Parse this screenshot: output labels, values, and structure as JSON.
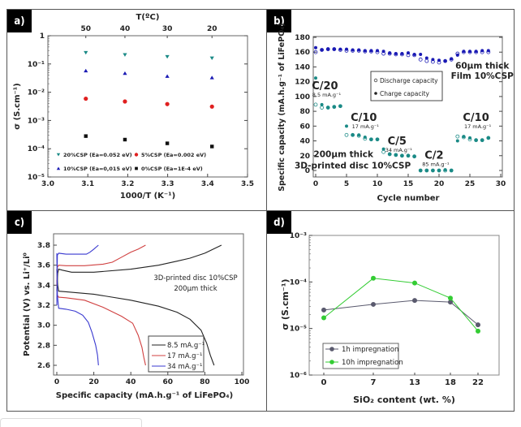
{
  "panels": {
    "a": {
      "label": "a)"
    },
    "b": {
      "label": "b)"
    },
    "c": {
      "label": "c)"
    },
    "d": {
      "label": "d)"
    }
  },
  "chart_data": [
    {
      "id": "a",
      "type": "scatter",
      "title": "",
      "xlabel": "1000/T (K⁻¹)",
      "ylabel": "σ (S.cm⁻¹)",
      "x2label": "T(ºC)",
      "yscale": "log",
      "xlim": [
        3.0,
        3.5
      ],
      "ylim_exp": [
        -5,
        0
      ],
      "xticks": [
        "3.0",
        "3.1",
        "3.2",
        "3.3",
        "3.4",
        "3.5"
      ],
      "xtick_values": [
        3.0,
        3.1,
        3.2,
        3.3,
        3.4,
        3.5
      ],
      "yticks": [
        "1",
        "10⁻¹",
        "10⁻²",
        "10⁻³",
        "10⁻⁴",
        "10⁻⁵"
      ],
      "ytick_exps": [
        0,
        -1,
        -2,
        -3,
        -4,
        -5
      ],
      "x2ticks": [
        "50",
        "40",
        "30",
        "20"
      ],
      "x2tick_values": [
        3.095,
        3.193,
        3.299,
        3.411
      ],
      "grid": false,
      "legend": "bottom-left",
      "series": [
        {
          "name": "20%CSP (Ea=0.052 eV)",
          "marker": "triangle-down",
          "color": "#1a8a86",
          "x": [
            3.095,
            3.193,
            3.299,
            3.411
          ],
          "y": [
            0.25,
            0.21,
            0.18,
            0.16
          ]
        },
        {
          "name": "10%CSP (Ea=0,015 eV)",
          "marker": "triangle-up",
          "color": "#1a1ab4",
          "x": [
            3.095,
            3.193,
            3.299,
            3.411
          ],
          "y": [
            0.058,
            0.047,
            0.037,
            0.033
          ]
        },
        {
          "name": "5%CSP (Ea=0.002 eV)",
          "marker": "circle",
          "color": "#e02020",
          "x": [
            3.095,
            3.193,
            3.299,
            3.411
          ],
          "y": [
            0.0059,
            0.0047,
            0.0038,
            0.0031
          ]
        },
        {
          "name": "0%CSP (Ea=1E-4 eV)",
          "marker": "square",
          "color": "#111111",
          "x": [
            3.095,
            3.193,
            3.299,
            3.411
          ],
          "y": [
            0.00028,
            0.00021,
            0.000155,
            0.00012
          ]
        }
      ]
    },
    {
      "id": "b",
      "type": "scatter",
      "title": "",
      "xlabel": "Cycle number",
      "ylabel": "Specific capacity (mA.h.g⁻¹ of LiFePO₄)",
      "xlim": [
        0,
        30
      ],
      "ylim": [
        -10,
        180
      ],
      "xticks": [
        "0",
        "5",
        "10",
        "15",
        "20",
        "25",
        "30"
      ],
      "xtick_values": [
        0,
        5,
        10,
        15,
        20,
        25,
        30
      ],
      "yticks": [
        "0",
        "20",
        "40",
        "60",
        "80",
        "100",
        "120",
        "140",
        "160",
        "180"
      ],
      "ytick_values": [
        0,
        20,
        40,
        60,
        80,
        100,
        120,
        140,
        160,
        180
      ],
      "grid": false,
      "legend": "top-center",
      "legend_entries": [
        "Discharge capacity",
        "Charge capacity"
      ],
      "annotations": [
        {
          "text": "C/20",
          "sub": "8.5 mA.g⁻¹",
          "x": 1.5,
          "y": 110
        },
        {
          "text": "C/10",
          "sub": "17 mA.g⁻¹",
          "x": 7.8,
          "y": 67
        },
        {
          "text": "C/5",
          "sub": "34 mA.g⁻¹",
          "x": 13.2,
          "y": 35
        },
        {
          "text": "C/2",
          "sub": "85 mA.g⁻¹",
          "x": 19.2,
          "y": 16
        },
        {
          "text": "C/10",
          "sub": "17 mA.g⁻¹",
          "x": 26,
          "y": 67
        },
        {
          "text": "60µm thick",
          "x": 27,
          "y": 138,
          "color": "#1a1ab4"
        },
        {
          "text": "Film 10%CSP",
          "x": 27,
          "y": 124,
          "color": "#1a1ab4"
        },
        {
          "text": "200µm thick",
          "x": 4.5,
          "y": 18,
          "color": "#1a8a86"
        },
        {
          "text": "3D-printed disc 10%CSP",
          "x": 6,
          "y": 3,
          "color": "#1a8a86"
        }
      ],
      "series": [
        {
          "name": "Film discharge",
          "marker": "open-circle",
          "color": "#1a1ab4",
          "x": [
            0,
            1,
            2,
            3,
            4,
            5,
            6,
            7,
            8,
            9,
            10,
            11,
            12,
            13,
            14,
            15,
            16,
            17,
            18,
            19,
            20,
            21,
            22,
            23,
            24,
            25,
            26,
            27,
            28
          ],
          "y": [
            160,
            163,
            164,
            164,
            163,
            162,
            162,
            162,
            161,
            161,
            160,
            158,
            158,
            157,
            157,
            156,
            156,
            150,
            148,
            147,
            146,
            148,
            150,
            158,
            160,
            160,
            160,
            160,
            160
          ]
        },
        {
          "name": "Film charge",
          "marker": "filled-circle",
          "color": "#1a1ab4",
          "x": [
            0,
            1,
            2,
            3,
            4,
            5,
            6,
            7,
            8,
            9,
            10,
            11,
            12,
            13,
            14,
            15,
            16,
            17,
            18,
            19,
            20,
            21,
            22,
            23,
            24,
            25,
            26,
            27,
            28
          ],
          "y": [
            166,
            163,
            164,
            164,
            164,
            164,
            163,
            163,
            162,
            162,
            162,
            161,
            159,
            158,
            158,
            159,
            157,
            157,
            152,
            150,
            149,
            148,
            151,
            156,
            161,
            161,
            161,
            162,
            162
          ]
        },
        {
          "name": "Disc discharge",
          "marker": "open-circle",
          "color": "#1a8a86",
          "x": [
            0,
            1,
            2,
            3,
            4,
            5,
            6,
            7,
            8,
            9,
            10,
            11,
            12,
            13,
            14,
            15,
            16,
            17,
            18,
            19,
            20,
            21,
            22,
            23,
            24,
            25,
            26,
            27,
            28
          ],
          "y": [
            89,
            85,
            85,
            86,
            87,
            48,
            48,
            47,
            43,
            42,
            42,
            25,
            22,
            21,
            20,
            20,
            19,
            0,
            0,
            0,
            0,
            0,
            0,
            46,
            45,
            42,
            41,
            41,
            44
          ]
        },
        {
          "name": "Disc charge",
          "marker": "filled-circle",
          "color": "#1a8a86",
          "x": [
            0,
            1,
            2,
            3,
            4,
            5,
            6,
            7,
            8,
            9,
            10,
            11,
            12,
            13,
            14,
            15,
            16,
            17,
            18,
            19,
            20,
            21,
            22,
            23,
            24,
            25,
            26,
            27,
            28
          ],
          "y": [
            125,
            89,
            85,
            86,
            87,
            60,
            48,
            48,
            45,
            42,
            42,
            29,
            22,
            21,
            20,
            20,
            19,
            0,
            0,
            0,
            0,
            1,
            0,
            40,
            46,
            44,
            41,
            41,
            44
          ]
        }
      ]
    },
    {
      "id": "c",
      "type": "line",
      "title": "",
      "xlabel": "Specific capacity (mA.h.g⁻¹ of LiFePO₄)",
      "ylabel": "Potential (V) vs. Li⁺/Li⁰",
      "xlim": [
        0,
        100
      ],
      "ylim": [
        2.55,
        3.9
      ],
      "xticks": [
        "0",
        "20",
        "40",
        "60",
        "80",
        "100"
      ],
      "xtick_values": [
        0,
        20,
        40,
        60,
        80,
        100
      ],
      "yticks": [
        "2.6",
        "2.8",
        "3.0",
        "3.2",
        "3.4",
        "3.6",
        "3.8"
      ],
      "ytick_values": [
        2.6,
        2.8,
        3.0,
        3.2,
        3.4,
        3.6,
        3.8
      ],
      "grid": false,
      "legend": "bottom-right",
      "annotation": [
        "3D-printed disc 10%CSP",
        "200µm thick"
      ],
      "series": [
        {
          "name": "8.5 mA.g⁻¹",
          "color": "#222222",
          "charge": {
            "x": [
              0,
              0.5,
              1,
              3,
              8,
              20,
              40,
              55,
              65,
              72,
              80,
              89
            ],
            "y": [
              3.34,
              3.52,
              3.56,
              3.55,
              3.53,
              3.53,
              3.56,
              3.6,
              3.64,
              3.67,
              3.72,
              3.8
            ]
          },
          "discharge": {
            "x": [
              0,
              0.5,
              1,
              5,
              20,
              40,
              55,
              65,
              72,
              78,
              81,
              83,
              85
            ],
            "y": [
              3.56,
              3.4,
              3.34,
              3.335,
              3.31,
              3.25,
              3.19,
              3.13,
              3.06,
              2.95,
              2.82,
              2.7,
              2.6
            ]
          }
        },
        {
          "name": "17 mA.g⁻¹",
          "color": "#d04040",
          "charge": {
            "x": [
              0,
              0.3,
              1,
              5,
              15,
              25,
              30,
              35,
              40,
              44,
              48
            ],
            "y": [
              3.4,
              3.58,
              3.6,
              3.595,
              3.595,
              3.61,
              3.63,
              3.68,
              3.73,
              3.76,
              3.8
            ]
          },
          "discharge": {
            "x": [
              0,
              0.3,
              1,
              5,
              15,
              25,
              35,
              41,
              44,
              46,
              47,
              48
            ],
            "y": [
              3.45,
              3.3,
              3.28,
              3.275,
              3.25,
              3.18,
              3.09,
              3.02,
              2.9,
              2.78,
              2.68,
              2.6
            ]
          }
        },
        {
          "name": "34 mA.g⁻¹",
          "color": "#3a3ad0",
          "charge": {
            "x": [
              0,
              0.3,
              1,
              5,
              10,
              16,
              18,
              20,
              22.5
            ],
            "y": [
              3.2,
              3.7,
              3.72,
              3.71,
              3.71,
              3.71,
              3.73,
              3.76,
              3.8
            ]
          },
          "discharge": {
            "x": [
              0,
              0.3,
              1,
              5,
              10,
              14,
              17,
              19,
              21,
              22,
              22.5
            ],
            "y": [
              3.72,
              3.3,
              3.17,
              3.16,
              3.14,
              3.1,
              3.03,
              2.93,
              2.8,
              2.7,
              2.6
            ]
          }
        }
      ]
    },
    {
      "id": "d",
      "type": "line",
      "title": "",
      "xlabel": "SiO₂ content (wt. %)",
      "ylabel": "σ (S.cm⁻¹)",
      "yscale": "log",
      "categories": [
        "0",
        "7",
        "13",
        "18",
        "22"
      ],
      "ylim_exp": [
        -6,
        -3
      ],
      "yticks": [
        "10⁻³",
        "10⁻⁴",
        "10⁻⁵",
        "10⁻⁶"
      ],
      "ytick_exps": [
        -3,
        -4,
        -5,
        -6
      ],
      "grid": false,
      "legend": "bottom-left",
      "series": [
        {
          "name": "1h impregnation",
          "color": "#5a5a6e",
          "values": [
            2.5e-05,
            3.3e-05,
            4e-05,
            3.7e-05,
            1.2e-05
          ]
        },
        {
          "name": "10h impregnation",
          "color": "#33cc33",
          "values": [
            1.7e-05,
            0.00012,
            9.5e-05,
            4.5e-05,
            8.8e-06
          ]
        }
      ]
    }
  ]
}
